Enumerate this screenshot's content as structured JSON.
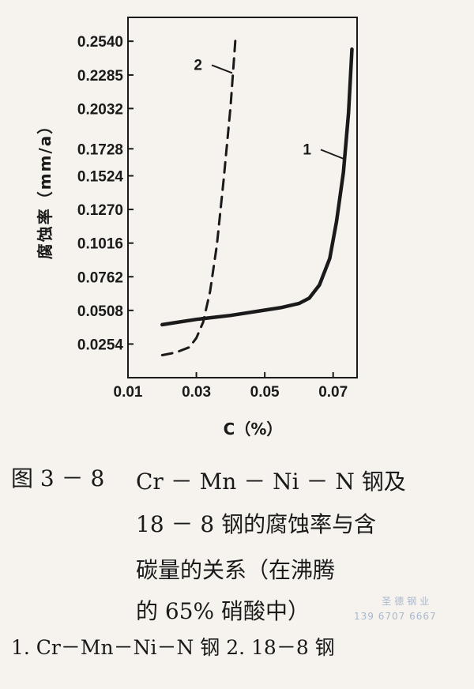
{
  "chart_data": {
    "type": "line",
    "xlabel": "C（%）",
    "ylabel": "腐蚀率（mm/a）",
    "x_ticks": [
      "0.01",
      "0.03",
      "0.05",
      "0.07"
    ],
    "y_ticks": [
      "0.0254",
      "0.0508",
      "0.0762",
      "0.1016",
      "0.1270",
      "0.1524",
      "0.1728",
      "0.2032",
      "0.2285",
      "0.2540"
    ],
    "xlim": [
      0.01,
      0.077
    ],
    "ylim": [
      0.0,
      0.272
    ],
    "series": [
      {
        "name": "1",
        "style": "solid",
        "x": [
          0.02,
          0.03,
          0.04,
          0.05,
          0.055,
          0.06,
          0.063,
          0.066,
          0.069,
          0.071,
          0.073,
          0.0745,
          0.0755
        ],
        "y": [
          0.04,
          0.044,
          0.047,
          0.051,
          0.053,
          0.056,
          0.06,
          0.07,
          0.09,
          0.118,
          0.155,
          0.2,
          0.248
        ]
      },
      {
        "name": "2",
        "style": "dashed",
        "x": [
          0.02,
          0.024,
          0.028,
          0.03,
          0.032,
          0.034,
          0.036,
          0.038,
          0.04,
          0.0415
        ],
        "y": [
          0.017,
          0.019,
          0.023,
          0.03,
          0.042,
          0.065,
          0.1,
          0.15,
          0.205,
          0.258
        ]
      }
    ]
  },
  "caption": {
    "number": "图 3 － 8",
    "line1": "Cr － Mn － Ni － N 钢及",
    "line2": "18 － 8 钢的腐蚀率与含",
    "line3": "碳量的关系（在沸腾",
    "line4": "的 65% 硝酸中）"
  },
  "legend_note": "1. Cr－Mn－Ni－N 钢    2. 18－8 钢",
  "watermark": {
    "line1": "圣德钢业",
    "line2": "139 6707 6667"
  }
}
